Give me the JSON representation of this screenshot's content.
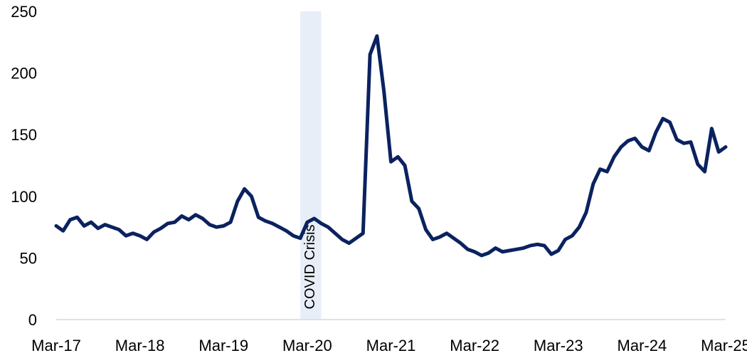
{
  "chart_data": {
    "type": "line",
    "title": "",
    "xlabel": "",
    "ylabel": "",
    "x_ticks": [
      "Mar-17",
      "Mar-18",
      "Mar-19",
      "Mar-20",
      "Mar-21",
      "Mar-22",
      "Mar-23",
      "Mar-24",
      "Mar-25"
    ],
    "y_ticks": [
      0,
      50,
      100,
      150,
      200,
      250
    ],
    "ylim": [
      0,
      250
    ],
    "xlim": [
      "2017-03",
      "2025-03"
    ],
    "grid": false,
    "legend": "none",
    "colors": {
      "line": "#0b2260",
      "band": "#e8eef8",
      "axis": "#d9d9d9"
    },
    "shaded_region": {
      "label": "COVID Crisis",
      "start": "2020-02",
      "end": "2020-05"
    },
    "series": [
      {
        "points": [
          [
            "2017-03",
            76
          ],
          [
            "2017-04",
            72
          ],
          [
            "2017-05",
            81
          ],
          [
            "2017-06",
            83
          ],
          [
            "2017-07",
            76
          ],
          [
            "2017-08",
            79
          ],
          [
            "2017-09",
            74
          ],
          [
            "2017-10",
            77
          ],
          [
            "2017-11",
            75
          ],
          [
            "2017-12",
            73
          ],
          [
            "2018-01",
            68
          ],
          [
            "2018-02",
            70
          ],
          [
            "2018-03",
            68
          ],
          [
            "2018-04",
            65
          ],
          [
            "2018-05",
            71
          ],
          [
            "2018-06",
            74
          ],
          [
            "2018-07",
            78
          ],
          [
            "2018-08",
            79
          ],
          [
            "2018-09",
            84
          ],
          [
            "2018-10",
            81
          ],
          [
            "2018-11",
            85
          ],
          [
            "2018-12",
            82
          ],
          [
            "2019-01",
            77
          ],
          [
            "2019-02",
            75
          ],
          [
            "2019-03",
            76
          ],
          [
            "2019-04",
            79
          ],
          [
            "2019-05",
            96
          ],
          [
            "2019-06",
            106
          ],
          [
            "2019-07",
            100
          ],
          [
            "2019-08",
            83
          ],
          [
            "2019-09",
            80
          ],
          [
            "2019-10",
            78
          ],
          [
            "2019-11",
            75
          ],
          [
            "2019-12",
            72
          ],
          [
            "2020-01",
            68
          ],
          [
            "2020-02",
            66
          ],
          [
            "2020-03",
            79
          ],
          [
            "2020-04",
            82
          ],
          [
            "2020-05",
            78
          ],
          [
            "2020-06",
            75
          ],
          [
            "2020-07",
            70
          ],
          [
            "2020-08",
            65
          ],
          [
            "2020-09",
            62
          ],
          [
            "2020-10",
            66
          ],
          [
            "2020-11",
            70
          ],
          [
            "2020-12",
            215
          ],
          [
            "2021-01",
            230
          ],
          [
            "2021-02",
            185
          ],
          [
            "2021-03",
            128
          ],
          [
            "2021-04",
            132
          ],
          [
            "2021-05",
            125
          ],
          [
            "2021-06",
            96
          ],
          [
            "2021-07",
            90
          ],
          [
            "2021-08",
            73
          ],
          [
            "2021-09",
            65
          ],
          [
            "2021-10",
            67
          ],
          [
            "2021-11",
            70
          ],
          [
            "2021-12",
            66
          ],
          [
            "2022-01",
            62
          ],
          [
            "2022-02",
            57
          ],
          [
            "2022-03",
            55
          ],
          [
            "2022-04",
            52
          ],
          [
            "2022-05",
            54
          ],
          [
            "2022-06",
            58
          ],
          [
            "2022-07",
            55
          ],
          [
            "2022-08",
            56
          ],
          [
            "2022-09",
            57
          ],
          [
            "2022-10",
            58
          ],
          [
            "2022-11",
            60
          ],
          [
            "2022-12",
            61
          ],
          [
            "2023-01",
            60
          ],
          [
            "2023-02",
            53
          ],
          [
            "2023-03",
            56
          ],
          [
            "2023-04",
            65
          ],
          [
            "2023-05",
            68
          ],
          [
            "2023-06",
            75
          ],
          [
            "2023-07",
            87
          ],
          [
            "2023-08",
            110
          ],
          [
            "2023-09",
            122
          ],
          [
            "2023-10",
            120
          ],
          [
            "2023-11",
            132
          ],
          [
            "2023-12",
            140
          ],
          [
            "2024-01",
            145
          ],
          [
            "2024-02",
            147
          ],
          [
            "2024-03",
            140
          ],
          [
            "2024-04",
            137
          ],
          [
            "2024-05",
            152
          ],
          [
            "2024-06",
            163
          ],
          [
            "2024-07",
            160
          ],
          [
            "2024-08",
            146
          ],
          [
            "2024-09",
            143
          ],
          [
            "2024-10",
            144
          ],
          [
            "2024-11",
            126
          ],
          [
            "2024-12",
            120
          ],
          [
            "2025-01",
            155
          ],
          [
            "2025-02",
            136
          ],
          [
            "2025-03",
            140
          ]
        ]
      }
    ]
  }
}
